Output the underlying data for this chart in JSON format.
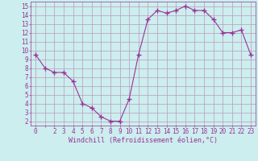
{
  "x": [
    0,
    1,
    2,
    3,
    4,
    5,
    6,
    7,
    8,
    9,
    10,
    11,
    12,
    13,
    14,
    15,
    16,
    17,
    18,
    19,
    20,
    21,
    22,
    23
  ],
  "y": [
    9.5,
    8.0,
    7.5,
    7.5,
    6.5,
    4.0,
    3.5,
    2.5,
    2.0,
    2.0,
    4.5,
    9.5,
    13.5,
    14.5,
    14.2,
    14.5,
    15.0,
    14.5,
    14.5,
    13.5,
    12.0,
    12.0,
    12.3,
    9.5
  ],
  "line_color": "#993399",
  "marker": "+",
  "marker_size": 4,
  "line_width": 0.8,
  "bg_color": "#cceeee",
  "grid_color": "#bb99bb",
  "xlabel": "Windchill (Refroidissement éolien,°C)",
  "xlabel_color": "#993399",
  "xlabel_fontsize": 6.0,
  "ylabel_ticks": [
    2,
    3,
    4,
    5,
    6,
    7,
    8,
    9,
    10,
    11,
    12,
    13,
    14,
    15
  ],
  "xlim": [
    -0.5,
    23.5
  ],
  "ylim": [
    1.5,
    15.5
  ],
  "tick_fontsize": 5.5,
  "tick_color": "#993399"
}
